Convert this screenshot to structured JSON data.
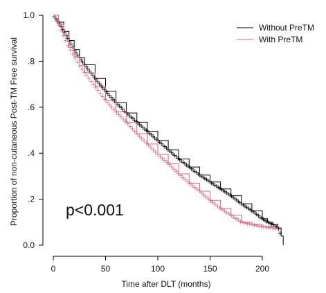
{
  "chart_data": {
    "type": "line",
    "title": "",
    "xlabel": "Time after DLT (months)",
    "ylabel": "Proportion of non-cutaneous Post-TM Free survival",
    "xlim": [
      0,
      220
    ],
    "ylim": [
      0,
      1
    ],
    "x_ticks": [
      0,
      50,
      100,
      150,
      200
    ],
    "x_tick_labels": [
      "0",
      "50",
      "100",
      "150",
      "200"
    ],
    "y_ticks": [
      0,
      0.2,
      0.4,
      0.6,
      0.8,
      1.0
    ],
    "y_tick_labels": [
      "0.0",
      ".2",
      ".4",
      ".6",
      ".8",
      "1.0"
    ],
    "grid": false,
    "legend_position": "top-right",
    "annotation": "p<0.001",
    "colors": {
      "Without PreTM": "#000000",
      "With PreTM": "#e0607a"
    },
    "series": [
      {
        "name": "Without PreTM",
        "x": [
          0,
          5,
          10,
          15,
          20,
          25,
          30,
          40,
          50,
          60,
          70,
          80,
          90,
          100,
          110,
          120,
          130,
          140,
          150,
          160,
          170,
          180,
          190,
          200,
          205,
          210,
          215,
          218,
          220
        ],
        "y": [
          1.0,
          0.97,
          0.93,
          0.89,
          0.85,
          0.815,
          0.785,
          0.725,
          0.67,
          0.62,
          0.575,
          0.535,
          0.495,
          0.455,
          0.415,
          0.375,
          0.34,
          0.305,
          0.275,
          0.245,
          0.215,
          0.18,
          0.15,
          0.115,
          0.1,
          0.09,
          0.075,
          0.04,
          0.0
        ]
      },
      {
        "name": "With PreTM",
        "x": [
          0,
          5,
          10,
          15,
          20,
          25,
          30,
          40,
          50,
          60,
          70,
          80,
          90,
          100,
          110,
          120,
          130,
          140,
          150,
          160,
          170,
          180,
          190,
          200,
          210,
          215
        ],
        "y": [
          1.0,
          0.96,
          0.91,
          0.86,
          0.82,
          0.78,
          0.75,
          0.69,
          0.63,
          0.58,
          0.535,
          0.485,
          0.44,
          0.395,
          0.355,
          0.31,
          0.27,
          0.235,
          0.195,
          0.16,
          0.13,
          0.1,
          0.09,
          0.08,
          0.075,
          0.07
        ]
      }
    ]
  }
}
